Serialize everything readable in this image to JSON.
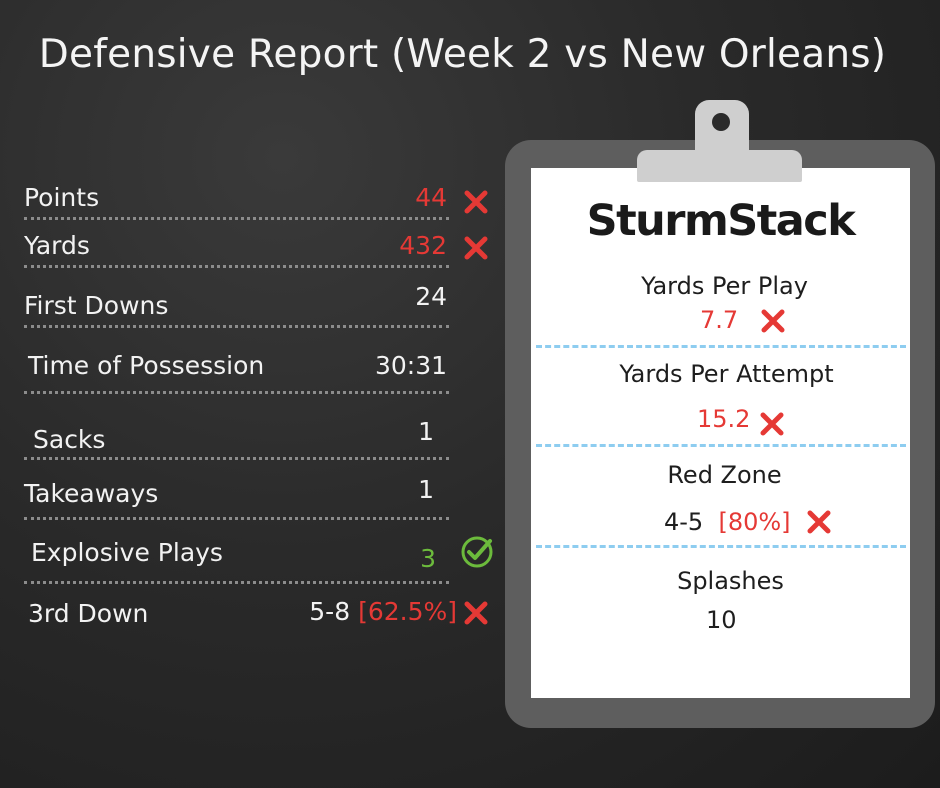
{
  "title": "Defensive Report (Week 2 vs New Orleans)",
  "stats": [
    {
      "label": "Points",
      "value": "44",
      "status": "bad"
    },
    {
      "label": "Yards",
      "value": "432",
      "status": "bad"
    },
    {
      "label": "First Downs",
      "value": "24",
      "status": "none"
    },
    {
      "label": "Time of Possession",
      "value": "30:31",
      "status": "none"
    },
    {
      "label": "Sacks",
      "value": "1",
      "status": "none"
    },
    {
      "label": "Takeaways",
      "value": "1",
      "status": "none"
    },
    {
      "label": "Explosive Plays",
      "value": "3",
      "status": "good"
    },
    {
      "label": "3rd Down",
      "value": "5-8",
      "pct": "[62.5%]",
      "status": "bad"
    }
  ],
  "clipboard": {
    "logo": "SturmStack",
    "metrics": [
      {
        "title": "Yards Per Play",
        "value": "7.7",
        "status": "bad"
      },
      {
        "title": "Yards Per Attempt",
        "value": "15.2",
        "status": "bad"
      },
      {
        "title": "Red Zone",
        "value": "4-5",
        "pct": "[80%]",
        "status": "bad"
      },
      {
        "title": "Splashes",
        "value": "10",
        "status": "none"
      }
    ]
  },
  "colors": {
    "bad": "#e53935",
    "good": "#6cbb3c",
    "divider": "#8ecdf0",
    "paper": "#ffffff",
    "board": "#5e5e5e"
  }
}
